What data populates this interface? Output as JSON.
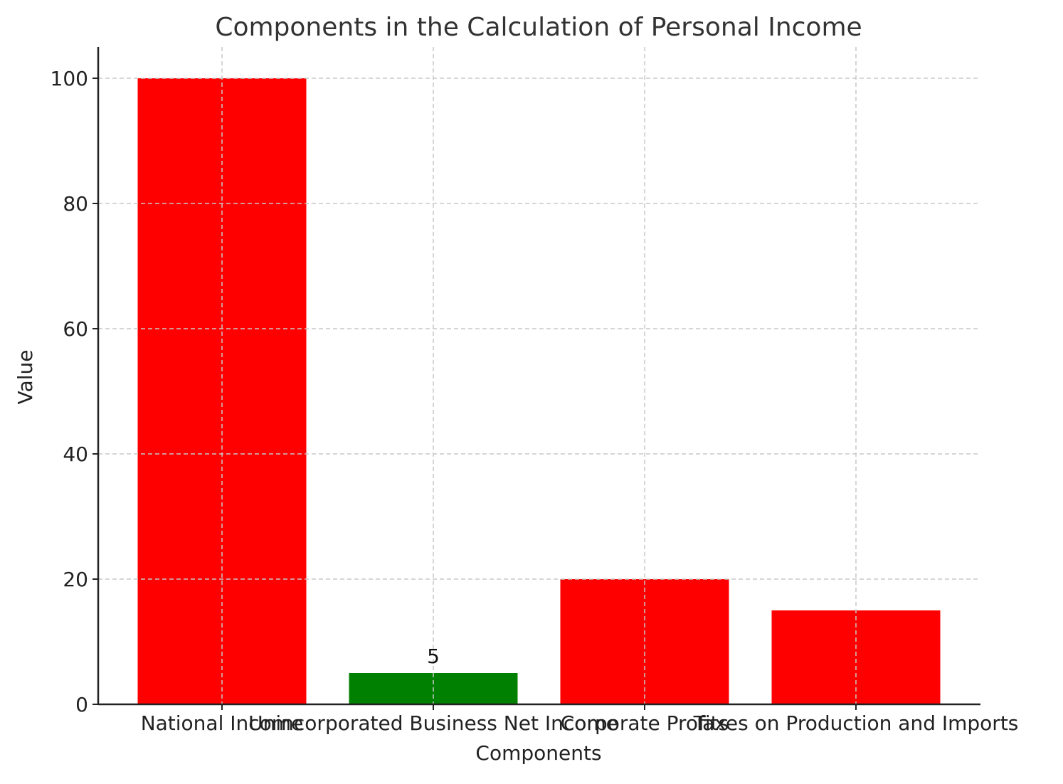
{
  "chart_data": {
    "type": "bar",
    "title": "Components in the Calculation of Personal Income",
    "xlabel": "Components",
    "ylabel": "Value",
    "categories": [
      "National Income",
      "Unincorporated Business Net Income",
      "Corporate Profits",
      "Taxes on Production and Imports"
    ],
    "values": [
      100,
      5,
      20,
      15
    ],
    "colors": [
      "#ff0000",
      "#008000",
      "#ff0000",
      "#ff0000"
    ],
    "data_labels": [
      "",
      "5",
      "",
      ""
    ],
    "ylim": [
      0,
      105
    ],
    "yticks": [
      0,
      20,
      40,
      60,
      80,
      100
    ],
    "grid": true,
    "grid_color": "#c8c8c8"
  }
}
